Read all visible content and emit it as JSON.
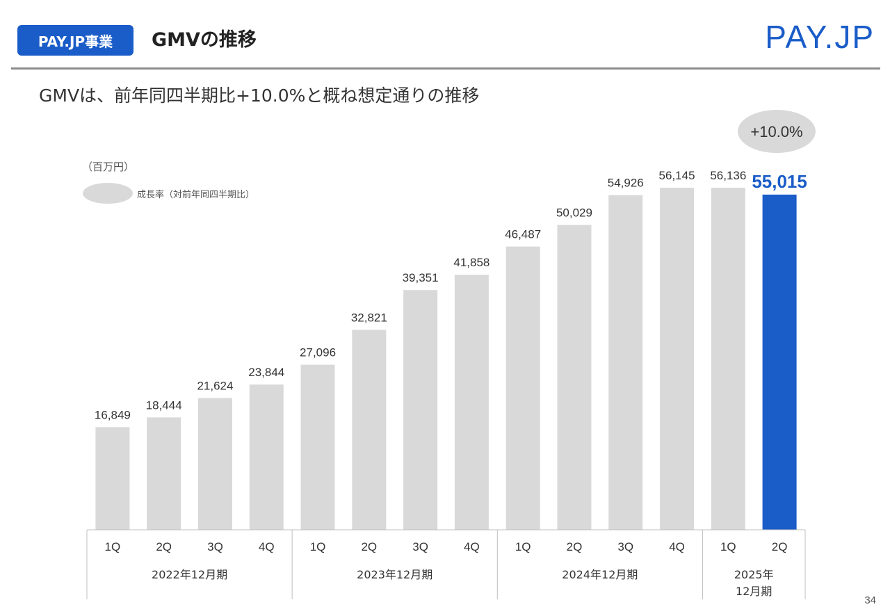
{
  "header": {
    "badge_label": "PAY.JP事業",
    "title": "GMVの推移",
    "logo_primary": "PAY.",
    "logo_secondary": "JP"
  },
  "subtitle": "GMVは、前年同四半期比+10.0%と概ね想定通りの推移",
  "legend": {
    "unit": "（百万円）",
    "growth_label": "成長率（対前年同四半期比）"
  },
  "growth_badge": "+10.0%",
  "page_number": "34",
  "colors": {
    "bar_default": "#d9d9d9",
    "bar_highlight": "#1a5cc8",
    "accent": "#1a5cc8"
  },
  "chart_data": {
    "type": "bar",
    "categories": [
      "1Q",
      "2Q",
      "3Q",
      "4Q",
      "1Q",
      "2Q",
      "3Q",
      "4Q",
      "1Q",
      "2Q",
      "3Q",
      "4Q",
      "1Q",
      "2Q"
    ],
    "values": [
      16849,
      18444,
      21624,
      23844,
      27096,
      32821,
      39351,
      41858,
      46487,
      50029,
      54926,
      56145,
      56136,
      55015
    ],
    "value_labels": [
      "16,849",
      "18,444",
      "21,624",
      "23,844",
      "27,096",
      "32,821",
      "39,351",
      "41,858",
      "46,487",
      "50,029",
      "54,926",
      "56,145",
      "56,136",
      "55,015"
    ],
    "groups": [
      {
        "label": "2022年12月期",
        "span": 4
      },
      {
        "label": "2023年12月期",
        "span": 4
      },
      {
        "label": "2024年12月期",
        "span": 4
      },
      {
        "label": "2025年\n12月期",
        "span": 2
      }
    ],
    "highlight_index": 13,
    "ylabel": "（百万円）",
    "ylim": [
      0,
      60000
    ],
    "grid": false
  }
}
